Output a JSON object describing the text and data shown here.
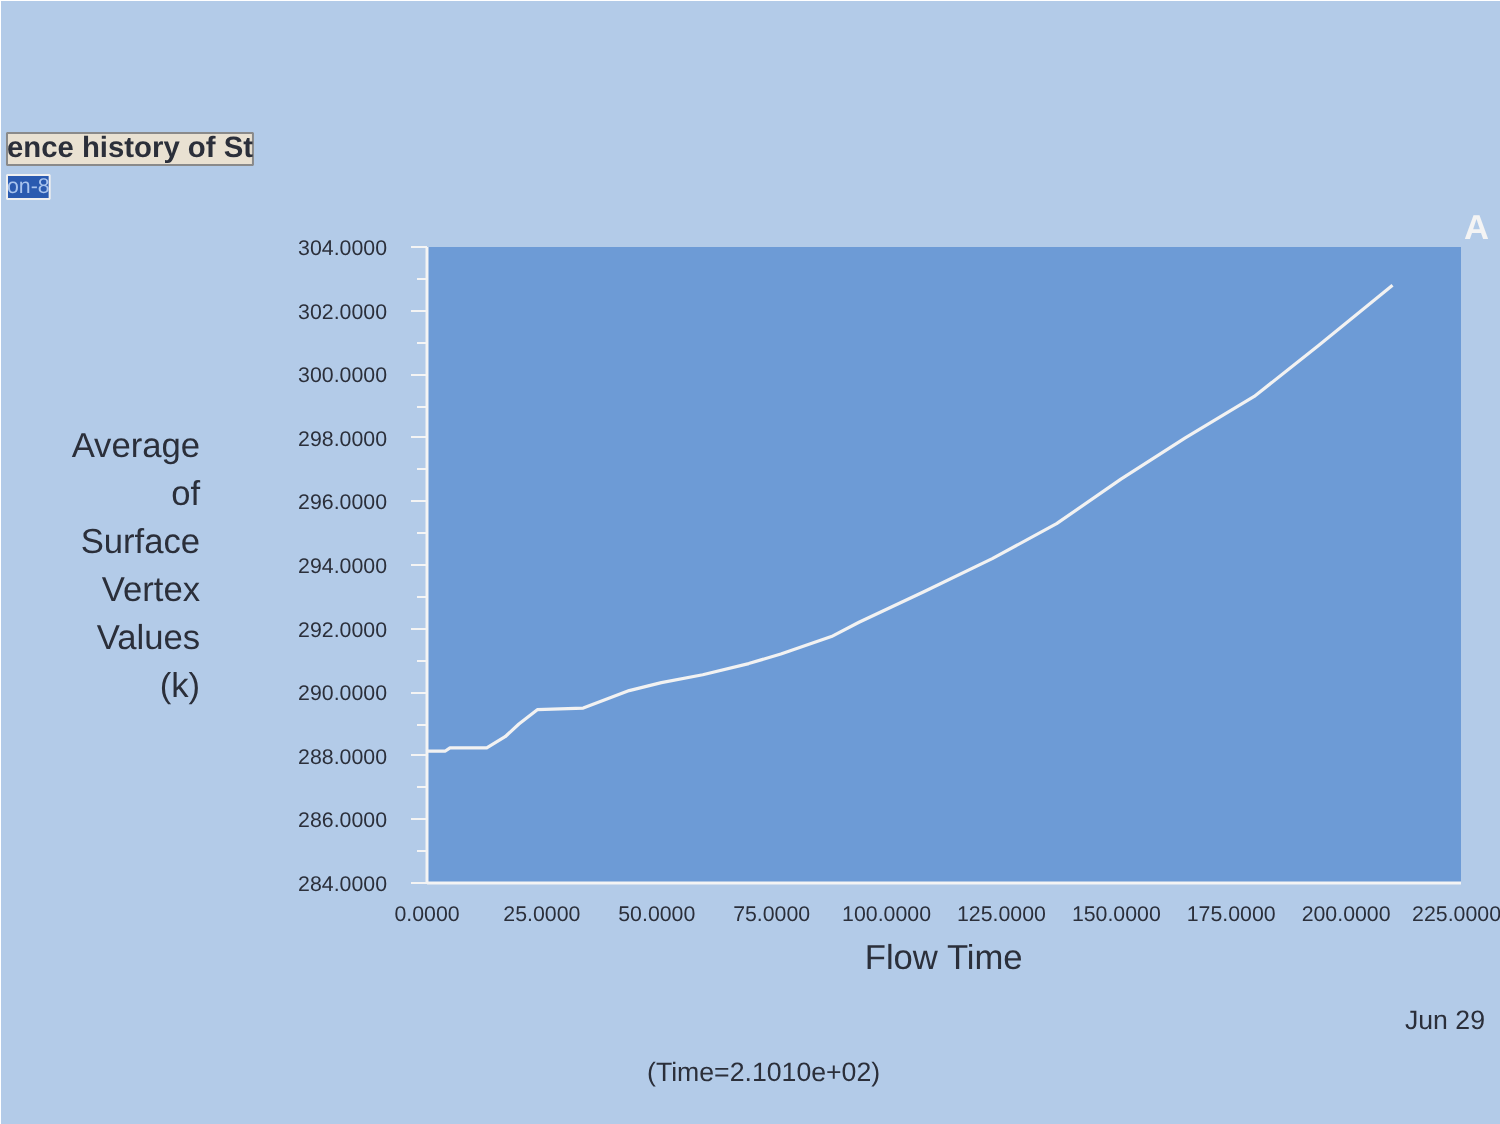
{
  "chart_data": {
    "type": "line",
    "xlabel": "Flow Time",
    "ylabel": "Average of Surface Vertex Values (k)",
    "x": [
      0,
      4,
      5,
      13,
      17,
      20,
      24,
      34,
      44,
      51,
      60,
      70,
      77,
      88,
      94,
      108,
      123,
      137,
      151,
      165,
      180,
      194,
      210.1
    ],
    "series": [
      {
        "color": "#f2f2f2",
        "values": [
          288.15,
          288.15,
          288.25,
          288.25,
          288.6,
          289.0,
          289.45,
          289.5,
          290.05,
          290.3,
          290.55,
          290.9,
          291.2,
          291.75,
          292.2,
          293.15,
          294.2,
          295.3,
          296.7,
          298.0,
          299.3,
          300.9,
          302.8
        ]
      }
    ],
    "xlim": [
      0,
      225
    ],
    "ylim": [
      284,
      304
    ],
    "xticks": [
      {
        "value": 0,
        "label": "0.0000"
      },
      {
        "value": 25,
        "label": "25.0000"
      },
      {
        "value": 50,
        "label": "50.0000"
      },
      {
        "value": 75,
        "label": "75.0000"
      },
      {
        "value": 100,
        "label": "100.0000"
      },
      {
        "value": 125,
        "label": "125.0000"
      },
      {
        "value": 150,
        "label": "150.0000"
      },
      {
        "value": 175,
        "label": "175.0000"
      },
      {
        "value": 200,
        "label": "200.0000"
      },
      {
        "value": 225,
        "label": "225.0000"
      }
    ],
    "yticks": [
      {
        "value": 284,
        "label": "284.0000"
      },
      {
        "value": 286,
        "label": "286.0000"
      },
      {
        "value": 288,
        "label": "288.0000"
      },
      {
        "value": 290,
        "label": "290.0000"
      },
      {
        "value": 292,
        "label": "292.0000"
      },
      {
        "value": 294,
        "label": "294.0000"
      },
      {
        "value": 296,
        "label": "296.0000"
      },
      {
        "value": 298,
        "label": "298.0000"
      },
      {
        "value": 300,
        "label": "300.0000"
      },
      {
        "value": 302,
        "label": "302.0000"
      },
      {
        "value": 304,
        "label": "304.0000"
      }
    ],
    "grid": false,
    "line_style": "solid",
    "annotations": [
      "ence history of St",
      "on-8",
      "A",
      "Jun 29",
      "(Time=2.1010e+02)"
    ]
  }
}
